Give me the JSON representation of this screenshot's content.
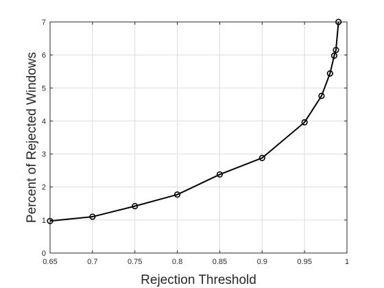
{
  "chart_data": {
    "type": "line",
    "title": "",
    "xlabel": "Rejection Threshold",
    "ylabel": "Percent of Rejected Windows",
    "xlim": [
      0.65,
      1
    ],
    "ylim": [
      0,
      7
    ],
    "xticks": [
      "0.65",
      "0.7",
      "0.75",
      "0.8",
      "0.85",
      "0.9",
      "0.95",
      "1"
    ],
    "yticks": [
      "0",
      "1",
      "2",
      "3",
      "4",
      "5",
      "6",
      "7"
    ],
    "grid": true,
    "legend": "none",
    "series": [
      {
        "x": [
          0.65,
          0.7,
          0.75,
          0.8,
          0.85,
          0.9,
          0.95,
          0.97,
          0.98,
          0.985,
          0.987,
          0.99
        ],
        "y": [
          0.97,
          1.1,
          1.42,
          1.77,
          2.38,
          2.88,
          3.96,
          4.76,
          5.44,
          5.98,
          6.15,
          7.0
        ],
        "color": "#000000",
        "marker": "circle"
      }
    ]
  }
}
